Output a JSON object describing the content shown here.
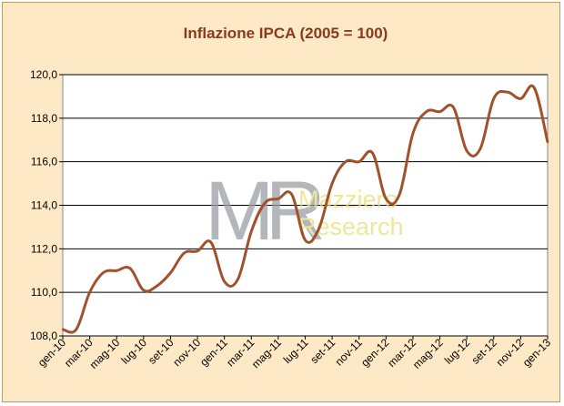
{
  "chart_data": {
    "type": "line",
    "title": "Inflazione IPCA (2005 = 100)",
    "xlabel": "",
    "ylabel": "",
    "ylim": [
      108,
      120
    ],
    "yticks": [
      "108,0",
      "110,0",
      "112,0",
      "114,0",
      "116,0",
      "118,0",
      "120,0"
    ],
    "ytick_values": [
      108,
      110,
      112,
      114,
      116,
      118,
      120
    ],
    "xtick_labels": [
      "gen-10",
      "mar-10",
      "mag-10",
      "lug-10",
      "set-10",
      "nov-10",
      "gen-11",
      "mar-11",
      "mag-11",
      "lug-11",
      "set-11",
      "nov-11",
      "gen-12",
      "mar-12",
      "mag-12",
      "lug-12",
      "set-12",
      "nov-12",
      "gen-13"
    ],
    "grid": true,
    "legend": "none",
    "categories": [
      "gen-10",
      "feb-10",
      "mar-10",
      "apr-10",
      "mag-10",
      "giu-10",
      "lug-10",
      "ago-10",
      "set-10",
      "ott-10",
      "nov-10",
      "dic-10",
      "gen-11",
      "feb-11",
      "mar-11",
      "apr-11",
      "mag-11",
      "giu-11",
      "lug-11",
      "ago-11",
      "set-11",
      "ott-11",
      "nov-11",
      "dic-11",
      "gen-12",
      "feb-12",
      "mar-12",
      "apr-12",
      "mag-12",
      "giu-12",
      "lug-12",
      "ago-12",
      "set-12",
      "ott-12",
      "nov-12",
      "dic-12",
      "gen-13"
    ],
    "series": [
      {
        "color": "#a0522d",
        "values": [
          108.3,
          108.3,
          110.0,
          110.9,
          111.0,
          111.1,
          110.1,
          110.3,
          110.9,
          111.8,
          111.9,
          112.3,
          110.5,
          110.6,
          112.8,
          114.1,
          114.3,
          114.5,
          112.4,
          112.9,
          115.0,
          116.0,
          116.0,
          116.4,
          114.3,
          114.5,
          117.3,
          118.3,
          118.3,
          118.5,
          116.5,
          116.6,
          118.9,
          119.2,
          118.9,
          119.4,
          116.9
        ]
      }
    ]
  },
  "watermark": {
    "line1": "Mazziero",
    "line2": "Research",
    "logo": "MR"
  }
}
